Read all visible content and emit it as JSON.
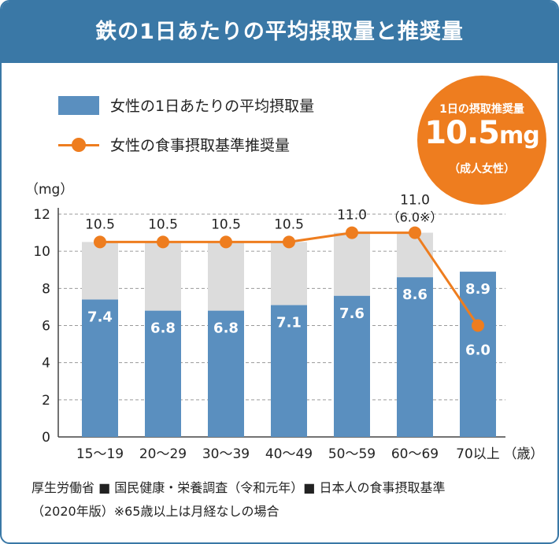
{
  "header": {
    "title": "鉄の1日あたりの平均摂取量と推奨量"
  },
  "legend": {
    "bar_label": "女性の1日あたりの平均摂取量",
    "line_label": "女性の食事摂取基準推奨量"
  },
  "badge": {
    "title": "1日の摂取推奨量",
    "value": "10.5",
    "unit": "mg",
    "sub": "（成人女性）"
  },
  "colors": {
    "bar": "#5a8fbf",
    "bar_bg": "#dcdcdc",
    "line": "#ee7d1f",
    "header": "#3a78a6"
  },
  "chart_data": {
    "type": "bar",
    "categories": [
      "15〜19",
      "20〜29",
      "30〜39",
      "40〜49",
      "50〜59",
      "60〜69",
      "70以上"
    ],
    "ylabel": "（mg）",
    "xunit": "（歳）",
    "ylim": [
      0,
      12
    ],
    "yticks": [
      0,
      2,
      4,
      6,
      8,
      10,
      12
    ],
    "grid": true,
    "series": [
      {
        "name": "女性の1日あたりの平均摂取量",
        "values": [
          7.4,
          6.8,
          6.8,
          7.1,
          7.6,
          8.6,
          8.9
        ],
        "labels": [
          "7.4",
          "6.8",
          "6.8",
          "7.1",
          "7.6",
          "8.6",
          "8.9"
        ]
      },
      {
        "name": "女性の食事摂取基準推奨量",
        "values": [
          10.5,
          10.5,
          10.5,
          10.5,
          11.0,
          11.0,
          6.0
        ],
        "labels": [
          "10.5",
          "10.5",
          "10.5",
          "10.5",
          "11.0",
          "11.0",
          "6.0"
        ]
      }
    ],
    "annotation": "（6.0※）"
  },
  "footer": {
    "line1": "厚生労働省 ■ 国民健康・栄養調査（令和元年）■ 日本人の食事摂取基準",
    "line2": "（2020年版）※65歳以上は月経なしの場合"
  }
}
